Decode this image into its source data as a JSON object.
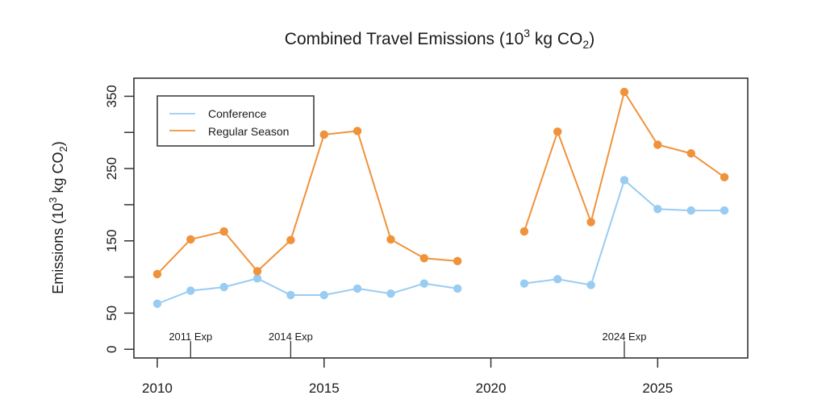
{
  "chart_data": {
    "type": "line",
    "title": {
      "main": "Combined Travel Emissions (10",
      "sup": "3",
      "mid": " kg CO",
      "sub": "2",
      "end": ")"
    },
    "ylabel": {
      "main": "Emissions (10",
      "sup": "3",
      "mid": " kg CO",
      "sub": "2",
      "end": ")"
    },
    "xlabel": "",
    "xlim": [
      2009.3,
      2027.7
    ],
    "ylim": [
      -12,
      375
    ],
    "x_ticks": [
      2010,
      2015,
      2020,
      2025
    ],
    "x_tick_labels": [
      "2010",
      "2015",
      "2020",
      "2025"
    ],
    "y_ticks": [
      0,
      50,
      100,
      150,
      200,
      250,
      300,
      350
    ],
    "y_tick_labels": [
      "0",
      "50",
      "",
      "150",
      "",
      "250",
      "",
      "350"
    ],
    "grid": false,
    "legend_position": "top-left",
    "x": [
      2010,
      2011,
      2012,
      2013,
      2014,
      2015,
      2016,
      2017,
      2018,
      2019,
      2020,
      2021,
      2022,
      2023,
      2024,
      2025,
      2026,
      2027
    ],
    "series": [
      {
        "name": "Conference",
        "color": "#99ccf2",
        "values": [
          63,
          81,
          86,
          98,
          75,
          75,
          84,
          77,
          91,
          84,
          null,
          91,
          97,
          89,
          234,
          194,
          192,
          192
        ]
      },
      {
        "name": "Regular Season",
        "color": "#f0923a",
        "values": [
          104,
          152,
          163,
          108,
          151,
          297,
          302,
          152,
          126,
          122,
          null,
          163,
          301,
          176,
          356,
          283,
          271,
          238
        ]
      }
    ],
    "annotations": [
      {
        "x": 2011,
        "label": "2011 Exp"
      },
      {
        "x": 2014,
        "label": "2014 Exp"
      },
      {
        "x": 2024,
        "label": "2024 Exp"
      }
    ]
  }
}
